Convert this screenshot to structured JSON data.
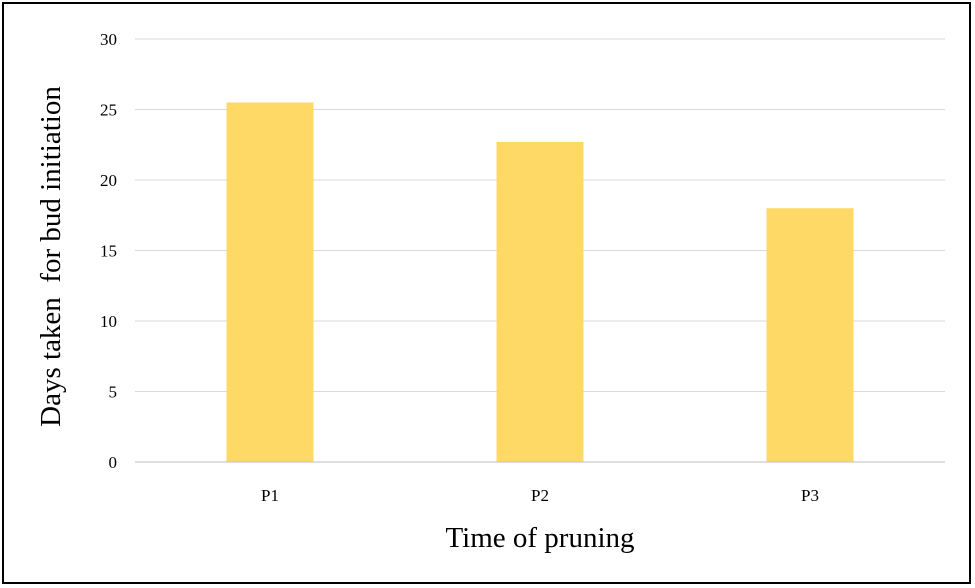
{
  "chart_data": {
    "type": "bar",
    "title": "",
    "xlabel": "Time of pruning",
    "ylabel": "Days taken  for bud initiation",
    "categories": [
      "P1",
      "P2",
      "P3"
    ],
    "values": [
      25.5,
      22.7,
      18.0
    ],
    "ylim": [
      0,
      30
    ],
    "yticks": [
      "0",
      "5",
      "10",
      "15",
      "20",
      "25",
      "30"
    ],
    "grid": true,
    "legend": "none",
    "colors": {
      "bar": "#FFD966",
      "grid": "#D9D9D9",
      "axis": "#BFBFBF",
      "text": "#000000"
    }
  }
}
